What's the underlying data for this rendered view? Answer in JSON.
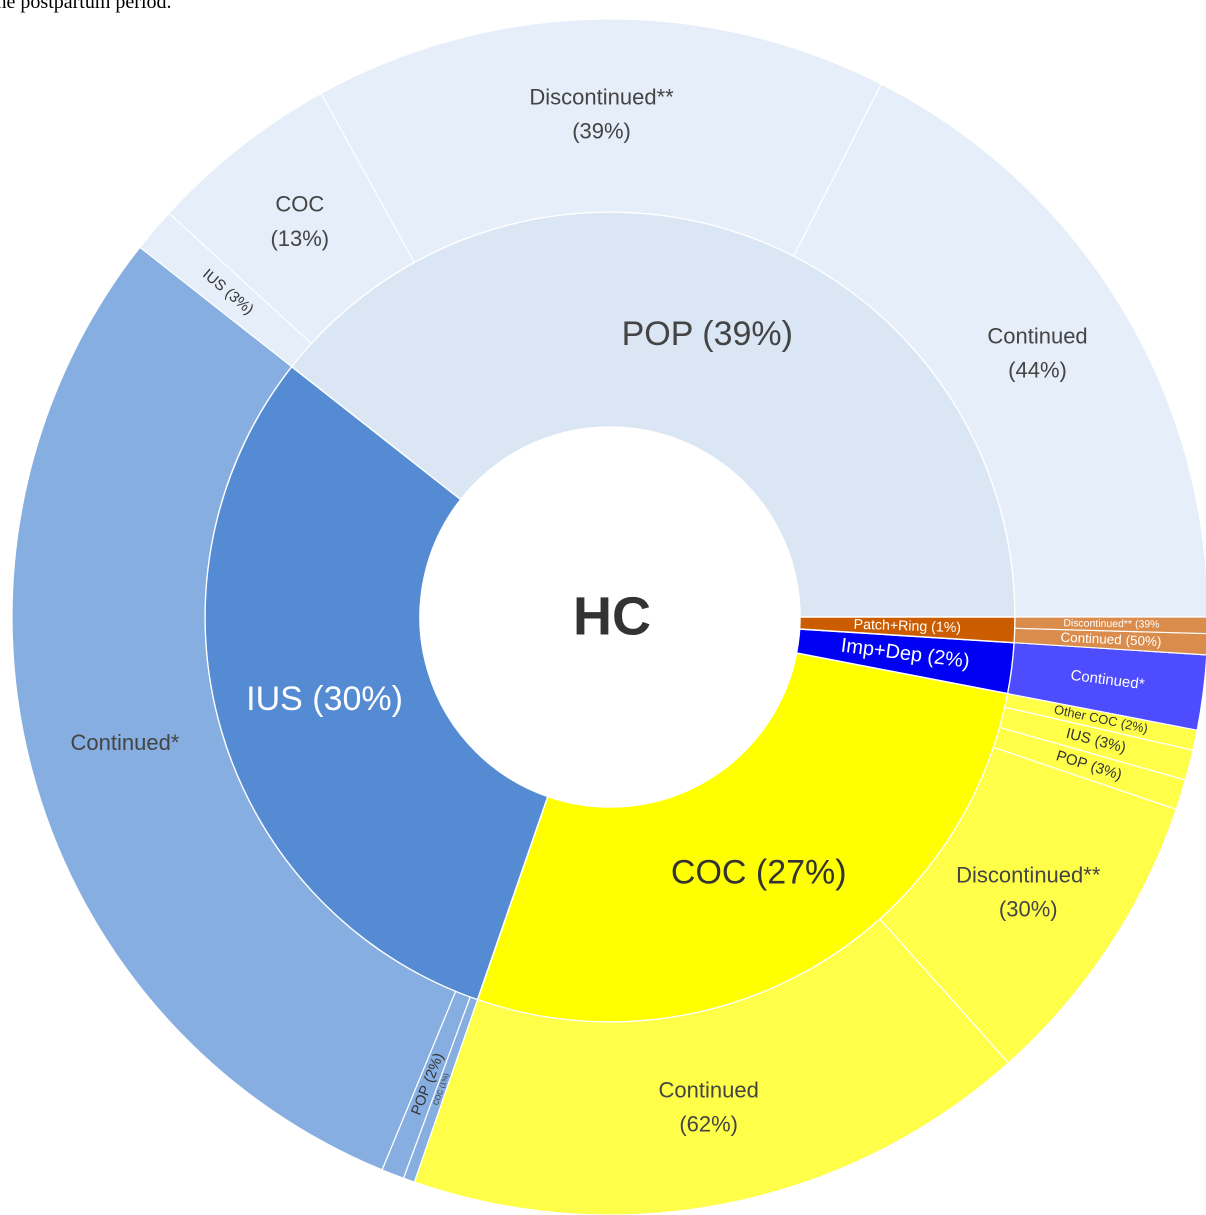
{
  "caption": "the postpartum period.",
  "chart_data": {
    "type": "sunburst",
    "center_label": "HC",
    "slices": [
      {
        "label": "POP (39%)",
        "value": 39,
        "color": "#dae6f4",
        "child_color": "#e5eef9",
        "children": {
          "labels": [
            "Continued",
            "Discontinued**",
            "COC",
            "IUS"
          ],
          "values": [
            44,
            39,
            13,
            3
          ],
          "value_labels": [
            "(44%)",
            "(39%)",
            "(13%)",
            "(3%)"
          ]
        }
      },
      {
        "label": "IUS (30%)",
        "value": 30,
        "color": "#558bd3",
        "child_color": "#86aee0",
        "children": {
          "labels": [
            "Continued*",
            "POP",
            "COC"
          ],
          "values": [
            96,
            2,
            1
          ],
          "value_labels": [
            null,
            "(2%)",
            "(1%)"
          ]
        }
      },
      {
        "label": "COC (27%)",
        "value": 27,
        "color": "#ffff00",
        "child_color": "#ffff4a",
        "children": {
          "labels": [
            "Continued",
            "Discontinued**",
            "POP",
            "IUS",
            "Other COC"
          ],
          "values": [
            62,
            30,
            3,
            3,
            2
          ],
          "value_labels": [
            "(62%)",
            "(30%)",
            "(3%)",
            "(3%)",
            "(2%)"
          ]
        }
      },
      {
        "label": "Imp+Dep (2%)",
        "value": 2,
        "color": "#0000f5",
        "child_color": "#4d4dff",
        "children": {
          "labels": [
            "Continued*"
          ],
          "values": [
            90
          ],
          "value_labels": [
            null
          ]
        }
      },
      {
        "label": "Patch+Ring (1%)",
        "value": 1,
        "color": "#cc5c00",
        "child_color": "#d98c4c",
        "children": {
          "labels": [
            "Continued",
            "Discontinued**"
          ],
          "values": [
            50,
            39
          ],
          "value_labels": [
            "(50%)",
            "(39%"
          ]
        }
      }
    ]
  }
}
